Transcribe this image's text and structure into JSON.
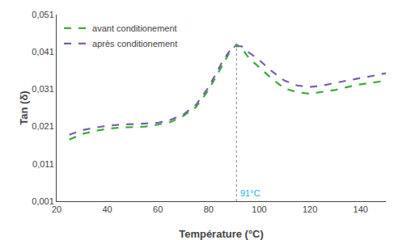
{
  "chart_data": {
    "type": "line",
    "title": "",
    "xlabel": "Température (°C)",
    "ylabel": "Tan (δ)",
    "x": [
      25,
      30,
      35,
      40,
      45,
      50,
      55,
      60,
      65,
      70,
      75,
      80,
      85,
      88,
      91,
      93,
      96,
      100,
      105,
      110,
      115,
      120,
      125,
      130,
      135,
      140,
      145,
      150
    ],
    "series": [
      {
        "name": "avant conditionement",
        "color": "#3aab3a",
        "line_style": "dashed",
        "values": [
          0.0175,
          0.019,
          0.0198,
          0.0204,
          0.0207,
          0.0208,
          0.021,
          0.0215,
          0.0222,
          0.0238,
          0.0262,
          0.0308,
          0.0368,
          0.0405,
          0.043,
          0.042,
          0.0393,
          0.0368,
          0.0338,
          0.0312,
          0.0302,
          0.0298,
          0.0303,
          0.0308,
          0.0316,
          0.0323,
          0.0328,
          0.0333
        ]
      },
      {
        "name": "après conditionement",
        "color": "#7b5ea7",
        "line_style": "dashed",
        "values": [
          0.0188,
          0.02,
          0.0207,
          0.0212,
          0.0215,
          0.0216,
          0.0218,
          0.022,
          0.0228,
          0.0242,
          0.0268,
          0.0315,
          0.0378,
          0.041,
          0.0425,
          0.0425,
          0.0408,
          0.0388,
          0.0358,
          0.0333,
          0.032,
          0.0316,
          0.032,
          0.0327,
          0.0334,
          0.034,
          0.0346,
          0.0353
        ]
      }
    ],
    "xlim": [
      20,
      150
    ],
    "xticks": [
      20,
      40,
      60,
      80,
      100,
      120,
      140
    ],
    "ylim": [
      0.001,
      0.051
    ],
    "yticks": [
      {
        "value": 0.001,
        "label": "0,001"
      },
      {
        "value": 0.011,
        "label": "0,011"
      },
      {
        "value": 0.021,
        "label": "0,021"
      },
      {
        "value": 0.031,
        "label": "0,031"
      },
      {
        "value": 0.041,
        "label": "0,041"
      },
      {
        "value": 0.051,
        "label": "0,051"
      }
    ],
    "vline": {
      "x": 91,
      "y": [
        0.001,
        0.043
      ]
    },
    "annotations": [
      {
        "text": "91°C",
        "x": 91,
        "color": "#1ab0f0"
      }
    ],
    "legend": "upper left",
    "grid": false
  }
}
